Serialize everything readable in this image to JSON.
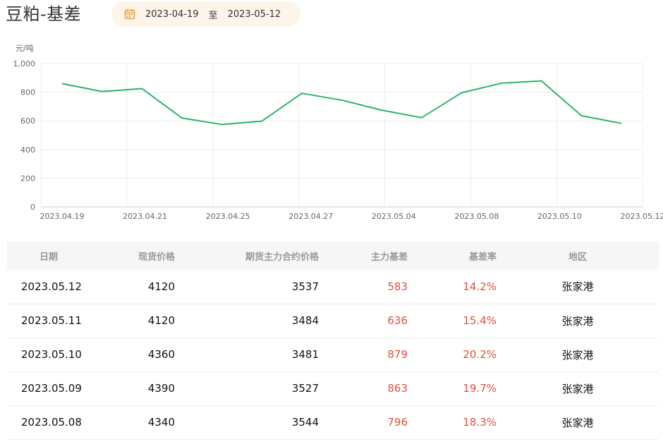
{
  "header": {
    "title": "豆粕-基差",
    "date_start": "2023-04-19",
    "date_sep": "至",
    "date_end": "2023-05-12",
    "calendar_icon": "calendar-icon"
  },
  "chart_data": {
    "type": "line",
    "unit_label": "元/吨",
    "x": [
      "2023.04.19",
      "2023.04.20",
      "2023.04.21",
      "2023.04.24",
      "2023.04.25",
      "2023.04.26",
      "2023.04.27",
      "2023.04.28",
      "2023.05.04",
      "2023.05.05",
      "2023.05.08",
      "2023.05.09",
      "2023.05.10",
      "2023.05.11",
      "2023.05.12"
    ],
    "x_tick_labels": [
      "2023.04.19",
      "2023.04.21",
      "2023.04.25",
      "2023.04.27",
      "2023.05.04",
      "2023.05.08",
      "2023.05.10",
      "2023.05.12"
    ],
    "series": [
      {
        "values": [
          860,
          805,
          825,
          620,
          575,
          598,
          792,
          745,
          675,
          622,
          796,
          863,
          879,
          636,
          583
        ],
        "color": "#2db36b"
      }
    ],
    "ylim": [
      0,
      1000
    ],
    "y_ticks": [
      "0",
      "200",
      "400",
      "600",
      "800",
      "1,000"
    ],
    "grid": true
  },
  "table": {
    "headers": [
      "日期",
      "现货价格",
      "期货主力合约价格",
      "主力基差",
      "基差率",
      "地区"
    ],
    "rows": [
      [
        "2023.05.12",
        "4120",
        "3537",
        "583",
        "14.2%",
        "张家港"
      ],
      [
        "2023.05.11",
        "4120",
        "3484",
        "636",
        "15.4%",
        "张家港"
      ],
      [
        "2023.05.10",
        "4360",
        "3481",
        "879",
        "20.2%",
        "张家港"
      ],
      [
        "2023.05.09",
        "4390",
        "3527",
        "863",
        "19.7%",
        "张家港"
      ],
      [
        "2023.05.08",
        "4340",
        "3544",
        "796",
        "18.3%",
        "张家港"
      ]
    ],
    "accent_color": "#e0503c"
  }
}
